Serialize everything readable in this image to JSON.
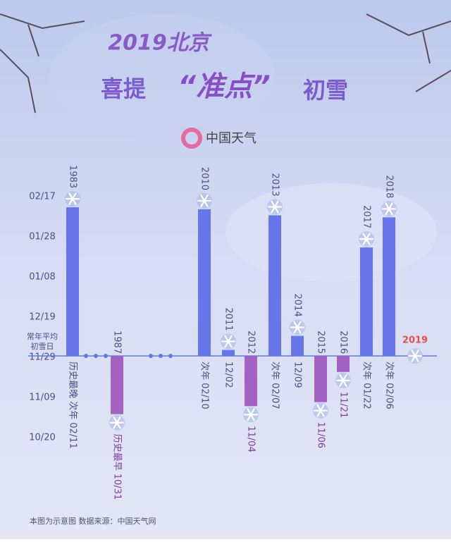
{
  "chart_data": {
    "type": "bar",
    "title": [
      "2019北京",
      "喜提",
      "“准点”",
      "初雪"
    ],
    "brand": "中国天气",
    "baseline_label": [
      "常年平均",
      "初雪日"
    ],
    "categories": [
      "1983",
      "1987",
      "2010",
      "2011",
      "2012",
      "2013",
      "2014",
      "2015",
      "2016",
      "2017",
      "2018",
      "2019"
    ],
    "values": [
      74,
      -29,
      73,
      3,
      -25,
      70,
      10,
      -23,
      -8,
      54,
      69,
      0
    ],
    "value_labels": [
      "历史最晚  次年 02/11",
      "历史最早  10/31",
      "次年 02/10",
      "12/02",
      "11/04",
      "次年 02/07",
      "12/09",
      "11/06",
      "11/21",
      "次年 01/22",
      "次年 02/06",
      null
    ],
    "colors": {
      "later": "#6675ea",
      "earlier": "#a461c4",
      "current": "#e8504a"
    },
    "ylim": [
      -50,
      90
    ],
    "yticks": [
      {
        "value": -40,
        "label": "10/20"
      },
      {
        "value": -20,
        "label": "11/09"
      },
      {
        "value": 0,
        "label": "11/29"
      },
      {
        "value": 20,
        "label": "12/19"
      },
      {
        "value": 40,
        "label": "01/08"
      },
      {
        "value": 60,
        "label": "01/28"
      },
      {
        "value": 80,
        "label": "02/17"
      }
    ],
    "footnote": "本图为示意图   数据来源：中国天气网"
  }
}
